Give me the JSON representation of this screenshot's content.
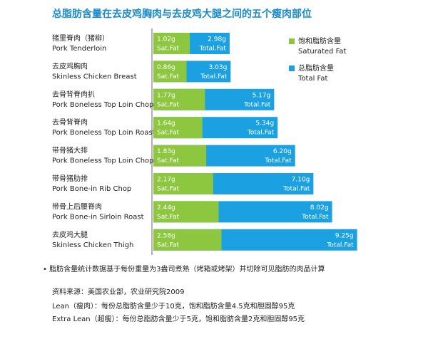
{
  "chart_data": {
    "type": "bar",
    "title": "总脂肪含量在去皮鸡胸肉与去皮鸡大腿之间的五个瘦肉部位",
    "categories": [
      "猪里脊肉（猪柳）",
      "去皮鸡胸肉",
      "去骨背脊肉扒",
      "去骨背脊肉",
      "带骨猪大排",
      "带骨猪肋排",
      "带骨上后腰脊肉",
      "去皮鸡大腿"
    ],
    "categories_en": [
      "Pork Tenderloin",
      "Skinless Chicken Breast",
      "Pork Boneless Top Loin Chop",
      "Pork Boneless Top Loin Roast",
      "Pork Boneless Top Loin Chop",
      "Pork Bone-in Rib Chop",
      "Pork Bone-in Sirloin Roast",
      "Skinless Chicken Thigh"
    ],
    "series": [
      {
        "name": "总脂肪含量",
        "name_en": "Total Fat",
        "short": "Total.Fat",
        "color": "#1ba1e2",
        "values": [
          2.98,
          3.03,
          5.17,
          5.34,
          6.2,
          7.1,
          8.02,
          9.25
        ],
        "value_labels": [
          "2.98g",
          "3.03g",
          "5.17g",
          "5.34g",
          "6.20g",
          "7.10g",
          "8.02g",
          "9.25g"
        ]
      },
      {
        "name": "饱和脂肪含量",
        "name_en": "Saturated Fat",
        "short": "Sat.Fat",
        "color": "#8dc63f",
        "values": [
          1.02,
          0.86,
          1.77,
          1.64,
          1.83,
          2.17,
          2.44,
          2.58
        ],
        "value_labels": [
          "1.02g",
          "0.86g",
          "1.77g",
          "1.64g",
          "1.83g",
          "2.17g",
          "2.44g",
          "2.58g"
        ]
      }
    ],
    "notes": [
      "• 脂肪含量统计数据基于每份重量为3盎司煮熟（烤箱或烤架）并切除可见脂肪的肉品计算",
      "资料来源：美国农业部，农业研究院2009",
      "Lean（瘦肉）：每份总脂肪含量少于10克，饱和脂肪含量4.5克和胆固醇95克",
      "Extra Lean（超瘦）：每份总脂肪含量少于5克，饱和脂肪含量2克和胆固醇95克"
    ]
  }
}
